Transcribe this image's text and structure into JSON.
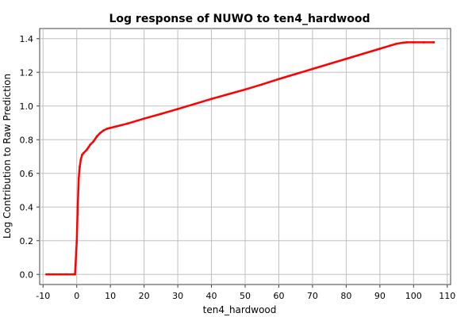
{
  "chart_data": {
    "type": "line",
    "title": "Log response of NUWO to ten4_hardwood",
    "xlabel": "ten4_hardwood",
    "ylabel": "Log Contribution to Raw Prediction",
    "xlim": [
      -11,
      111
    ],
    "ylim": [
      -0.06,
      1.46
    ],
    "xticks": [
      -10,
      0,
      10,
      20,
      30,
      40,
      50,
      60,
      70,
      80,
      90,
      100,
      110
    ],
    "yticks": [
      0.0,
      0.2,
      0.4,
      0.6,
      0.8,
      1.0,
      1.2,
      1.4
    ],
    "ytick_labels": [
      "0.0",
      "0.2",
      "0.4",
      "0.6",
      "0.8",
      "1.0",
      "1.2",
      "1.4"
    ],
    "grid": true,
    "color": "#ff0000",
    "series": [
      {
        "x": [
          -9,
          -7,
          -5,
          -3,
          -1,
          -0.5,
          0,
          0.3,
          0.6,
          0.9,
          1.2,
          1.6,
          2,
          3,
          4,
          5,
          6,
          7,
          8,
          9,
          10,
          12,
          15,
          20,
          25,
          30,
          35,
          40,
          45,
          50,
          55,
          60,
          65,
          70,
          75,
          80,
          85,
          90,
          93,
          95,
          97,
          98,
          100,
          103,
          106
        ],
        "y": [
          0.0,
          0.0,
          0.0,
          0.0,
          0.0,
          0.0,
          0.19,
          0.4,
          0.57,
          0.64,
          0.68,
          0.71,
          0.72,
          0.74,
          0.77,
          0.79,
          0.82,
          0.84,
          0.855,
          0.865,
          0.87,
          0.88,
          0.895,
          0.925,
          0.953,
          0.982,
          1.012,
          1.042,
          1.07,
          1.098,
          1.128,
          1.16,
          1.19,
          1.22,
          1.25,
          1.28,
          1.31,
          1.34,
          1.358,
          1.37,
          1.376,
          1.378,
          1.378,
          1.378,
          1.378
        ]
      }
    ]
  }
}
